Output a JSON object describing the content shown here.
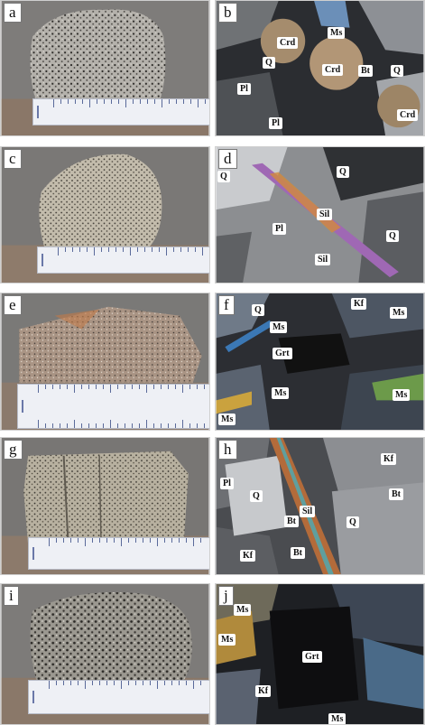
{
  "panels": [
    {
      "id": "a",
      "label": "a",
      "kind": "hand-specimen"
    },
    {
      "id": "b",
      "label": "b",
      "kind": "micrograph",
      "minerals": [
        "Crd",
        "Ms",
        "Bt",
        "Q",
        "Crd",
        "Q",
        "Pl",
        "Pl",
        "Crd"
      ]
    },
    {
      "id": "c",
      "label": "c",
      "kind": "hand-specimen"
    },
    {
      "id": "d",
      "label": "d",
      "kind": "micrograph",
      "minerals": [
        "Q",
        "Q",
        "Pl",
        "Sil",
        "Q",
        "Sil"
      ]
    },
    {
      "id": "e",
      "label": "e",
      "kind": "hand-specimen"
    },
    {
      "id": "f",
      "label": "f",
      "kind": "micrograph",
      "minerals": [
        "Q",
        "Kf",
        "Ms",
        "Ms",
        "Grt",
        "Ms",
        "Ms",
        "Ms"
      ]
    },
    {
      "id": "g",
      "label": "g",
      "kind": "hand-specimen"
    },
    {
      "id": "h",
      "label": "h",
      "kind": "micrograph",
      "minerals": [
        "Kf",
        "Pl",
        "Q",
        "Bt",
        "Sil",
        "Bt",
        "Q",
        "Kf",
        "Bt"
      ]
    },
    {
      "id": "i",
      "label": "i",
      "kind": "hand-specimen"
    },
    {
      "id": "j",
      "label": "j",
      "kind": "micrograph",
      "minerals": [
        "Ms",
        "Ms",
        "Grt",
        "Kf",
        "Ms"
      ]
    }
  ],
  "colors": {
    "ruler": "#eef0f5",
    "ruler_ticks": "#5a6a9a",
    "label_bg": "#ffffff",
    "backdrop": "#6c6a68"
  }
}
